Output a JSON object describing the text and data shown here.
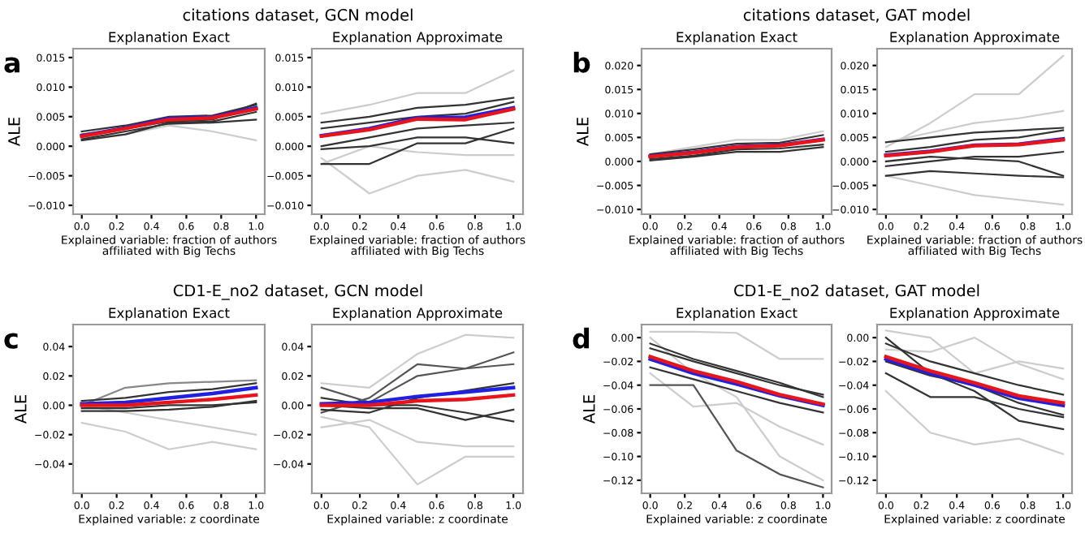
{
  "chart_data": [
    {
      "type": "line",
      "title": "Explanation Exact",
      "xlabel": "Explained variable: fraction of authors\naffiliated with Big Techs",
      "ylabel": "ALE",
      "annotations": [
        "citations dataset, GCN model",
        "a"
      ],
      "x": [
        0,
        0.25,
        0.5,
        0.75,
        1.0
      ],
      "xlim": [
        -0.05,
        1.05
      ],
      "xticks": [
        {
          "value": 0,
          "label": "0.0"
        },
        {
          "value": 0.2,
          "label": "0.2"
        },
        {
          "value": 0.4,
          "label": "0.4"
        },
        {
          "value": 0.6,
          "label": "0.6"
        },
        {
          "value": 0.8,
          "label": "0.8"
        },
        {
          "value": 1.0,
          "label": "1.0"
        }
      ],
      "ylim": [
        -0.0115,
        0.0165
      ],
      "yticks": [
        {
          "value": -0.01,
          "label": "−0.010"
        },
        {
          "value": -0.005,
          "label": "−0.005"
        },
        {
          "value": 0,
          "label": "0.000"
        },
        {
          "value": 0.005,
          "label": "0.005"
        },
        {
          "value": 0.01,
          "label": "0.010"
        },
        {
          "value": 0.015,
          "label": "0.015"
        }
      ],
      "series": [
        {
          "color": "#cccccc",
          "values": [
            0.0015,
            0.002,
            0.0035,
            0.0025,
            0.001
          ]
        },
        {
          "color": "#333333",
          "values": [
            0.001,
            0.002,
            0.004,
            0.0042,
            0.0058
          ]
        },
        {
          "color": "#333333",
          "values": [
            0.0025,
            0.0035,
            0.005,
            0.0052,
            0.007
          ]
        },
        {
          "color": "#333333",
          "values": [
            0.0012,
            0.0025,
            0.0038,
            0.004,
            0.0045
          ]
        },
        {
          "color": "#333333",
          "values": [
            0.002,
            0.003,
            0.0042,
            0.0045,
            0.0072
          ]
        },
        {
          "color": "#2020e0",
          "values": [
            0.0018,
            0.0031,
            0.0047,
            0.0049,
            0.0065
          ]
        },
        {
          "color": "#e8141c",
          "values": [
            0.0017,
            0.003,
            0.0045,
            0.0048,
            0.0063
          ]
        }
      ]
    },
    {
      "type": "line",
      "title": "Explanation Approximate",
      "xlabel": "Explained variable: fraction of authors\naffiliated with Big Techs",
      "x": [
        0,
        0.25,
        0.5,
        0.75,
        1.0
      ],
      "xlim": [
        -0.05,
        1.05
      ],
      "xticks": [
        {
          "value": 0,
          "label": "0.0"
        },
        {
          "value": 0.2,
          "label": "0.2"
        },
        {
          "value": 0.4,
          "label": "0.4"
        },
        {
          "value": 0.6,
          "label": "0.6"
        },
        {
          "value": 0.8,
          "label": "0.8"
        },
        {
          "value": 1.0,
          "label": "1.0"
        }
      ],
      "ylim": [
        -0.0115,
        0.0165
      ],
      "yticks": [
        {
          "value": -0.01,
          "label": "−0.010"
        },
        {
          "value": -0.005,
          "label": "−0.005"
        },
        {
          "value": 0,
          "label": "0.000"
        },
        {
          "value": 0.005,
          "label": "0.005"
        },
        {
          "value": 0.01,
          "label": "0.010"
        },
        {
          "value": 0.015,
          "label": "0.015"
        }
      ],
      "series": [
        {
          "color": "#cccccc",
          "values": [
            0.0055,
            0.007,
            0.009,
            0.009,
            0.0128
          ]
        },
        {
          "color": "#cccccc",
          "values": [
            -0.002,
            -0.008,
            -0.005,
            -0.004,
            -0.006
          ]
        },
        {
          "color": "#cccccc",
          "values": [
            -0.003,
            0.0,
            -0.001,
            -0.0015,
            -0.0015
          ]
        },
        {
          "color": "#333333",
          "values": [
            0.004,
            0.005,
            0.0065,
            0.007,
            0.0082
          ]
        },
        {
          "color": "#333333",
          "values": [
            -0.0005,
            0.0,
            0.0015,
            0.0015,
            0.0005
          ]
        },
        {
          "color": "#333333",
          "values": [
            0.0,
            0.0015,
            0.003,
            0.0035,
            0.004
          ]
        },
        {
          "color": "#333333",
          "values": [
            -0.003,
            -0.003,
            0.0005,
            0.0005,
            0.003
          ]
        },
        {
          "color": "#333333",
          "values": [
            0.003,
            0.004,
            0.005,
            0.0055,
            0.0075
          ]
        },
        {
          "color": "#2020e0",
          "values": [
            0.0018,
            0.003,
            0.0048,
            0.0049,
            0.0065
          ]
        },
        {
          "color": "#e8141c",
          "values": [
            0.0017,
            0.0028,
            0.0046,
            0.0045,
            0.0063
          ]
        }
      ]
    },
    {
      "type": "line",
      "title": "Explanation Exact",
      "xlabel": "Explained variable: fraction of authors\naffiliated with Big Techs",
      "ylabel": "ALE",
      "annotations": [
        "citations dataset, GAT model",
        "b"
      ],
      "x": [
        0,
        0.25,
        0.5,
        0.75,
        1.0
      ],
      "xlim": [
        -0.05,
        1.05
      ],
      "xticks": [
        {
          "value": 0,
          "label": "0.0"
        },
        {
          "value": 0.2,
          "label": "0.2"
        },
        {
          "value": 0.4,
          "label": "0.4"
        },
        {
          "value": 0.6,
          "label": "0.6"
        },
        {
          "value": 0.8,
          "label": "0.8"
        },
        {
          "value": 1.0,
          "label": "1.0"
        }
      ],
      "ylim": [
        -0.011,
        0.0235
      ],
      "yticks": [
        {
          "value": -0.01,
          "label": "−0.010"
        },
        {
          "value": -0.005,
          "label": "−0.005"
        },
        {
          "value": 0,
          "label": "0.000"
        },
        {
          "value": 0.005,
          "label": "0.005"
        },
        {
          "value": 0.01,
          "label": "0.010"
        },
        {
          "value": 0.015,
          "label": "0.015"
        },
        {
          "value": 0.02,
          "label": "0.020"
        }
      ],
      "series": [
        {
          "color": "#cccccc",
          "values": [
            0.0015,
            0.003,
            0.0045,
            0.0045,
            0.0063
          ]
        },
        {
          "color": "#333333",
          "values": [
            0.0005,
            0.0012,
            0.0025,
            0.0027,
            0.0035
          ]
        },
        {
          "color": "#333333",
          "values": [
            0.0015,
            0.0025,
            0.0037,
            0.0039,
            0.0055
          ]
        },
        {
          "color": "#333333",
          "values": [
            0.0002,
            0.001,
            0.002,
            0.002,
            0.003
          ]
        },
        {
          "color": "#2020e0",
          "values": [
            0.0011,
            0.0019,
            0.0031,
            0.0034,
            0.0046
          ]
        },
        {
          "color": "#e8141c",
          "values": [
            0.001,
            0.0018,
            0.003,
            0.0033,
            0.0045
          ]
        }
      ]
    },
    {
      "type": "line",
      "title": "Explanation Approximate",
      "xlabel": "Explained variable: fraction of authors\naffiliated with Big Techs",
      "x": [
        0,
        0.25,
        0.5,
        0.75,
        1.0
      ],
      "xlim": [
        -0.05,
        1.05
      ],
      "xticks": [
        {
          "value": 0,
          "label": "0.0"
        },
        {
          "value": 0.2,
          "label": "0.2"
        },
        {
          "value": 0.4,
          "label": "0.4"
        },
        {
          "value": 0.6,
          "label": "0.6"
        },
        {
          "value": 0.8,
          "label": "0.8"
        },
        {
          "value": 1.0,
          "label": "1.0"
        }
      ],
      "ylim": [
        -0.011,
        0.0235
      ],
      "yticks": [
        {
          "value": -0.01,
          "label": "−0.010"
        },
        {
          "value": -0.005,
          "label": "−0.005"
        },
        {
          "value": 0,
          "label": "0.000"
        },
        {
          "value": 0.005,
          "label": "0.005"
        },
        {
          "value": 0.01,
          "label": "0.010"
        },
        {
          "value": 0.015,
          "label": "0.015"
        },
        {
          "value": 0.02,
          "label": "0.020"
        }
      ],
      "series": [
        {
          "color": "#cccccc",
          "values": [
            0.003,
            0.008,
            0.014,
            0.014,
            0.022
          ]
        },
        {
          "color": "#cccccc",
          "values": [
            -0.003,
            -0.005,
            -0.007,
            -0.008,
            -0.009
          ]
        },
        {
          "color": "#cccccc",
          "values": [
            0.004,
            0.006,
            0.008,
            0.009,
            0.0105
          ]
        },
        {
          "color": "#333333",
          "values": [
            0.004,
            0.005,
            0.006,
            0.0065,
            0.007
          ]
        },
        {
          "color": "#333333",
          "values": [
            -0.003,
            -0.002,
            -0.0025,
            -0.003,
            -0.0033
          ]
        },
        {
          "color": "#333333",
          "values": [
            -0.001,
            0.0,
            0.001,
            0.001,
            0.002
          ]
        },
        {
          "color": "#333333",
          "values": [
            0.002,
            0.003,
            0.0045,
            0.005,
            0.0065
          ]
        },
        {
          "color": "#333333",
          "values": [
            0.0,
            0.001,
            0.0005,
            0.0,
            -0.003
          ]
        },
        {
          "color": "#2020e0",
          "values": [
            0.0013,
            0.0021,
            0.0034,
            0.0036,
            0.0047
          ]
        },
        {
          "color": "#e8141c",
          "values": [
            0.0012,
            0.002,
            0.0033,
            0.0035,
            0.0045
          ]
        }
      ]
    },
    {
      "type": "line",
      "title": "Explanation Exact",
      "xlabel": "Explained variable: z coordinate",
      "ylabel": "ALE",
      "annotations": [
        "CD1-E_no2 dataset, GCN model",
        "c"
      ],
      "x": [
        0,
        0.25,
        0.5,
        0.75,
        1.0
      ],
      "xlim": [
        -0.05,
        1.05
      ],
      "xticks": [
        {
          "value": 0,
          "label": "0.0"
        },
        {
          "value": 0.2,
          "label": "0.2"
        },
        {
          "value": 0.4,
          "label": "0.4"
        },
        {
          "value": 0.6,
          "label": "0.6"
        },
        {
          "value": 0.8,
          "label": "0.8"
        },
        {
          "value": 1.0,
          "label": "1.0"
        }
      ],
      "ylim": [
        -0.06,
        0.055
      ],
      "yticks": [
        {
          "value": -0.04,
          "label": "−0.04"
        },
        {
          "value": -0.02,
          "label": "−0.02"
        },
        {
          "value": 0,
          "label": "0.00"
        },
        {
          "value": 0.02,
          "label": "0.02"
        },
        {
          "value": 0.04,
          "label": "0.04"
        }
      ],
      "series": [
        {
          "color": "#cccccc",
          "values": [
            -0.012,
            -0.018,
            -0.03,
            -0.025,
            -0.03
          ]
        },
        {
          "color": "#cccccc",
          "values": [
            0.0,
            -0.005,
            -0.01,
            -0.015,
            -0.02
          ]
        },
        {
          "color": "#888888",
          "values": [
            0.0,
            0.012,
            0.015,
            0.016,
            0.017
          ]
        },
        {
          "color": "#333333",
          "values": [
            -0.004,
            -0.004,
            -0.003,
            -0.001,
            0.003
          ]
        },
        {
          "color": "#333333",
          "values": [
            -0.002,
            -0.002,
            0.0,
            0.0,
            0.002
          ]
        },
        {
          "color": "#333333",
          "values": [
            0.003,
            0.005,
            0.009,
            0.011,
            0.015
          ]
        },
        {
          "color": "#2020e0",
          "values": [
            0.001,
            0.002,
            0.005,
            0.008,
            0.012
          ]
        },
        {
          "color": "#e8141c",
          "values": [
            0.0,
            0.0,
            0.002,
            0.004,
            0.007
          ]
        }
      ]
    },
    {
      "type": "line",
      "title": "Explanation Approximate",
      "xlabel": "Explained variable: z coordinate",
      "x": [
        0,
        0.25,
        0.5,
        0.75,
        1.0
      ],
      "xlim": [
        -0.05,
        1.05
      ],
      "xticks": [
        {
          "value": 0,
          "label": "0.0"
        },
        {
          "value": 0.2,
          "label": "0.2"
        },
        {
          "value": 0.4,
          "label": "0.4"
        },
        {
          "value": 0.6,
          "label": "0.6"
        },
        {
          "value": 0.8,
          "label": "0.8"
        },
        {
          "value": 1.0,
          "label": "1.0"
        }
      ],
      "ylim": [
        -0.06,
        0.055
      ],
      "yticks": [
        {
          "value": -0.04,
          "label": "−0.04"
        },
        {
          "value": -0.02,
          "label": "−0.02"
        },
        {
          "value": 0,
          "label": "0.00"
        },
        {
          "value": 0.02,
          "label": "0.02"
        },
        {
          "value": 0.04,
          "label": "0.04"
        }
      ],
      "series": [
        {
          "color": "#cccccc",
          "values": [
            -0.008,
            -0.015,
            -0.054,
            -0.035,
            -0.035
          ]
        },
        {
          "color": "#cccccc",
          "values": [
            0.015,
            0.012,
            0.035,
            0.048,
            0.046
          ]
        },
        {
          "color": "#cccccc",
          "values": [
            -0.015,
            -0.01,
            -0.025,
            -0.028,
            -0.028
          ]
        },
        {
          "color": "#555555",
          "values": [
            0.012,
            0.002,
            0.02,
            0.025,
            0.036
          ]
        },
        {
          "color": "#555555",
          "values": [
            -0.005,
            0.005,
            0.028,
            0.025,
            0.028
          ]
        },
        {
          "color": "#333333",
          "values": [
            0.005,
            0.0,
            0.0,
            -0.005,
            -0.011
          ]
        },
        {
          "color": "#333333",
          "values": [
            -0.003,
            -0.005,
            0.005,
            0.01,
            0.015
          ]
        },
        {
          "color": "#333333",
          "values": [
            0.0,
            -0.002,
            -0.002,
            -0.01,
            -0.003
          ]
        },
        {
          "color": "#2020e0",
          "values": [
            0.001,
            0.002,
            0.006,
            0.009,
            0.012
          ]
        },
        {
          "color": "#e8141c",
          "values": [
            0.0,
            0.0,
            0.003,
            0.004,
            0.007
          ]
        }
      ]
    },
    {
      "type": "line",
      "title": "Explanation Exact",
      "xlabel": "Explained variable: z coordinate",
      "ylabel": "ALE",
      "annotations": [
        "CD1-E_no2 dataset, GAT model",
        "d"
      ],
      "x": [
        0,
        0.25,
        0.5,
        0.75,
        1.0
      ],
      "xlim": [
        -0.05,
        1.05
      ],
      "xticks": [
        {
          "value": 0,
          "label": "0.0"
        },
        {
          "value": 0.2,
          "label": "0.2"
        },
        {
          "value": 0.4,
          "label": "0.4"
        },
        {
          "value": 0.6,
          "label": "0.6"
        },
        {
          "value": 0.8,
          "label": "0.8"
        },
        {
          "value": 1.0,
          "label": "1.0"
        }
      ],
      "ylim": [
        -0.131,
        0.011
      ],
      "yticks": [
        {
          "value": -0.12,
          "label": "−0.12"
        },
        {
          "value": -0.1,
          "label": "−0.10"
        },
        {
          "value": -0.08,
          "label": "−0.08"
        },
        {
          "value": -0.06,
          "label": "−0.06"
        },
        {
          "value": -0.04,
          "label": "−0.04"
        },
        {
          "value": -0.02,
          "label": "−0.02"
        },
        {
          "value": 0,
          "label": "0.00"
        }
      ],
      "series": [
        {
          "color": "#cccccc",
          "values": [
            0.005,
            0.005,
            0.004,
            -0.018,
            -0.018
          ]
        },
        {
          "color": "#cccccc",
          "values": [
            -0.03,
            -0.058,
            -0.055,
            -0.075,
            -0.09
          ]
        },
        {
          "color": "#cccccc",
          "values": [
            0.0,
            -0.03,
            -0.05,
            -0.1,
            -0.12
          ]
        },
        {
          "color": "#333333",
          "values": [
            -0.009,
            -0.02,
            -0.03,
            -0.04,
            -0.048
          ]
        },
        {
          "color": "#555555",
          "values": [
            -0.04,
            -0.04,
            -0.095,
            -0.115,
            -0.126
          ]
        },
        {
          "color": "#333333",
          "values": [
            -0.025,
            -0.035,
            -0.045,
            -0.055,
            -0.063
          ]
        },
        {
          "color": "#333333",
          "values": [
            -0.005,
            -0.018,
            -0.028,
            -0.038,
            -0.05
          ]
        },
        {
          "color": "#2020e0",
          "values": [
            -0.018,
            -0.03,
            -0.039,
            -0.049,
            -0.057
          ]
        },
        {
          "color": "#e8141c",
          "values": [
            -0.016,
            -0.028,
            -0.037,
            -0.048,
            -0.056
          ]
        }
      ]
    },
    {
      "type": "line",
      "title": "Explanation Approximate",
      "xlabel": "Explained variable: z coordinate",
      "x": [
        0,
        0.25,
        0.5,
        0.75,
        1.0
      ],
      "xlim": [
        -0.05,
        1.05
      ],
      "xticks": [
        {
          "value": 0,
          "label": "0.0"
        },
        {
          "value": 0.2,
          "label": "0.2"
        },
        {
          "value": 0.4,
          "label": "0.4"
        },
        {
          "value": 0.6,
          "label": "0.6"
        },
        {
          "value": 0.8,
          "label": "0.8"
        },
        {
          "value": 1.0,
          "label": "1.0"
        }
      ],
      "ylim": [
        -0.131,
        0.011
      ],
      "yticks": [
        {
          "value": -0.12,
          "label": "−0.12"
        },
        {
          "value": -0.1,
          "label": "−0.10"
        },
        {
          "value": -0.08,
          "label": "−0.08"
        },
        {
          "value": -0.06,
          "label": "−0.06"
        },
        {
          "value": -0.04,
          "label": "−0.04"
        },
        {
          "value": -0.02,
          "label": "−0.02"
        },
        {
          "value": 0,
          "label": "0.00"
        }
      ],
      "series": [
        {
          "color": "#cccccc",
          "values": [
            0.006,
            0.0,
            -0.03,
            -0.02,
            -0.026
          ]
        },
        {
          "color": "#cccccc",
          "values": [
            -0.01,
            -0.012,
            0.0,
            -0.022,
            -0.035
          ]
        },
        {
          "color": "#cccccc",
          "values": [
            -0.045,
            -0.08,
            -0.09,
            -0.085,
            -0.098
          ]
        },
        {
          "color": "#333333",
          "values": [
            0.0,
            -0.03,
            -0.045,
            -0.07,
            -0.077
          ]
        },
        {
          "color": "#333333",
          "values": [
            -0.03,
            -0.05,
            -0.05,
            -0.06,
            -0.067
          ]
        },
        {
          "color": "#333333",
          "values": [
            -0.005,
            -0.02,
            -0.03,
            -0.04,
            -0.048
          ]
        },
        {
          "color": "#333333",
          "values": [
            -0.02,
            -0.032,
            -0.04,
            -0.055,
            -0.065
          ]
        },
        {
          "color": "#2020e0",
          "values": [
            -0.018,
            -0.03,
            -0.04,
            -0.051,
            -0.057
          ]
        },
        {
          "color": "#e8141c",
          "values": [
            -0.016,
            -0.028,
            -0.038,
            -0.049,
            -0.055
          ]
        }
      ]
    }
  ]
}
